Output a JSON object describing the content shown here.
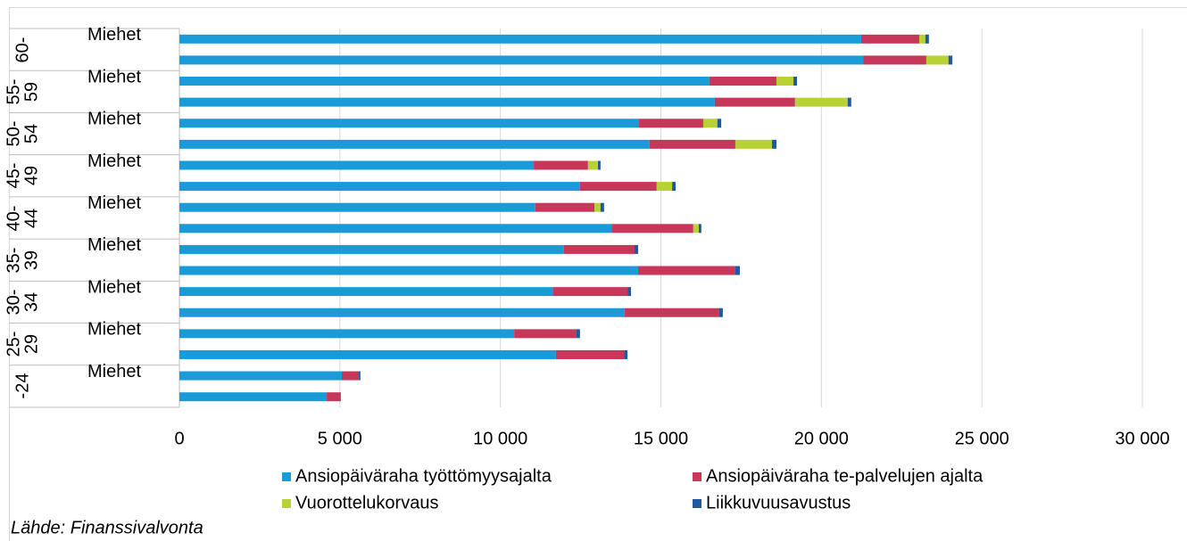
{
  "chart_data": {
    "type": "stacked-bar-horizontal",
    "categories": [
      "Miehet",
      null,
      "Miehet",
      null,
      "Miehet",
      null,
      "Miehet",
      null,
      "Miehet",
      null,
      "Miehet",
      null,
      "Miehet",
      null,
      "Miehet",
      null,
      "Miehet",
      null
    ],
    "groups": [
      "60-",
      "55- 59",
      "50- 54",
      "45- 49",
      "40- 44",
      "35- 39",
      "30- 34",
      "25- 29",
      "-24"
    ],
    "series": [
      {
        "name": "Ansiopäiväraha työttömyysajalta",
        "color": "#1a9ad6",
        "values": [
          21240,
          21300,
          16510,
          16680,
          14320,
          14650,
          11040,
          12480,
          11090,
          13460,
          11980,
          14290,
          11650,
          13870,
          10430,
          11730,
          5060,
          4590
        ]
      },
      {
        "name": "Ansiopäiväraha te-palvelujen ajalta",
        "color": "#c7375a",
        "values": [
          1810,
          1970,
          2090,
          2500,
          2000,
          2670,
          1690,
          2390,
          1840,
          2550,
          2200,
          3030,
          2310,
          2950,
          1940,
          2120,
          530,
          440
        ]
      },
      {
        "name": "Vuorottelukorvaus",
        "color": "#b9d233",
        "values": [
          190,
          690,
          530,
          1640,
          440,
          1140,
          310,
          480,
          190,
          170,
          0,
          0,
          0,
          0,
          0,
          0,
          0,
          0
        ]
      },
      {
        "name": "Liikkuvuusavustus",
        "color": "#1f5aa0",
        "values": [
          110,
          120,
          110,
          110,
          120,
          140,
          80,
          110,
          110,
          80,
          110,
          140,
          110,
          110,
          110,
          110,
          50,
          0
        ]
      }
    ],
    "xlim": [
      0,
      30000
    ],
    "xticks": [
      0,
      {
        "value": 5000,
        "label": "5 000"
      },
      {
        "value": 10000,
        "label": "10 000"
      },
      {
        "value": 15000,
        "label": "15 000"
      },
      {
        "value": 20000,
        "label": "20 000"
      },
      {
        "value": 25000,
        "label": "25 000"
      },
      {
        "value": 30000,
        "label": "30 000"
      }
    ],
    "grid": true,
    "legend": "bottom",
    "source": "Lähde: Finanssivalvonta"
  }
}
